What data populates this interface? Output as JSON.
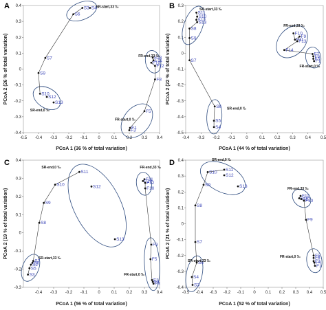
{
  "chart_data": [
    {
      "type": "scatter",
      "panel": "A",
      "xlabel": "PCoA 1 (36 % of total variation)",
      "ylabel": "PCoA 2 (26 % of total variation)",
      "xlim": [
        -0.5,
        0.4
      ],
      "ylim": [
        -0.4,
        0.4
      ],
      "xticks": [
        "-0.5",
        "-0.4",
        "-0.3",
        "-0.2",
        "-0.1",
        "0",
        "0.1",
        "0.2",
        "0.3",
        "0.4"
      ],
      "yticks": [
        "0.4",
        "0.3",
        "0.2",
        "0.1",
        "0",
        "-0.1",
        "-0.2",
        "-0.3",
        "-0.4"
      ],
      "points": [
        {
          "label": "S3",
          "x": -0.11,
          "y": 0.385
        },
        {
          "label": "S4",
          "x": -0.06,
          "y": 0.385
        },
        {
          "label": "S6",
          "x": -0.17,
          "y": 0.345
        },
        {
          "label": "S7",
          "x": -0.355,
          "y": 0.07
        },
        {
          "label": "S9",
          "x": -0.4,
          "y": -0.025
        },
        {
          "label": "S10",
          "x": -0.39,
          "y": -0.155
        },
        {
          "label": "S12",
          "x": -0.345,
          "y": -0.175
        },
        {
          "label": "S13",
          "x": -0.3,
          "y": -0.21
        },
        {
          "label": "F13",
          "x": 0.355,
          "y": 0.072
        },
        {
          "label": "F11",
          "x": 0.36,
          "y": 0.055
        },
        {
          "label": "F10",
          "x": 0.345,
          "y": 0.04
        },
        {
          "label": "F12",
          "x": 0.37,
          "y": 0.02
        },
        {
          "label": "F8",
          "x": 0.37,
          "y": -0.065
        },
        {
          "label": "F5",
          "x": 0.3,
          "y": -0.265
        },
        {
          "label": "F3",
          "x": 0.2,
          "y": -0.385
        },
        {
          "label": "F1",
          "x": 0.205,
          "y": -0.37
        }
      ],
      "annotations": [
        {
          "text": "SR-start,33 ‰",
          "x": -0.02,
          "y": 0.385
        },
        {
          "text": "FR-end,33 ‰",
          "x": 0.26,
          "y": 0.075
        },
        {
          "text": "SR-end,0 ‰",
          "x": -0.455,
          "y": -0.265
        },
        {
          "text": "FR-start,0 ‰",
          "x": 0.105,
          "y": -0.325
        }
      ]
    },
    {
      "type": "scatter",
      "panel": "B",
      "xlabel": "PCoA 1 (44 % of total variation)",
      "ylabel": "PCoA 2 (22 % of total variation)",
      "xlim": [
        -0.4,
        0.5
      ],
      "ylim": [
        -0.5,
        0.3
      ],
      "xticks": [
        "-0.4",
        "-0.3",
        "-0.2",
        "-0.1",
        "0",
        "0.1",
        "0.2",
        "0.3",
        "0.4",
        "0.5"
      ],
      "yticks": [
        "0.3",
        "0.2",
        "0.1",
        "0",
        "-0.1",
        "-0.2",
        "-0.3",
        "-0.4",
        "-0.5"
      ],
      "points": [
        {
          "label": "S11",
          "x": -0.33,
          "y": 0.255
        },
        {
          "label": "S10",
          "x": -0.325,
          "y": 0.23
        },
        {
          "label": "S12",
          "x": -0.33,
          "y": 0.21
        },
        {
          "label": "S13",
          "x": -0.325,
          "y": 0.195
        },
        {
          "label": "S8",
          "x": -0.375,
          "y": 0.155
        },
        {
          "label": "S9",
          "x": -0.375,
          "y": 0.095
        },
        {
          "label": "S7",
          "x": -0.375,
          "y": -0.045
        },
        {
          "label": "S6",
          "x": -0.21,
          "y": -0.335
        },
        {
          "label": "S5",
          "x": -0.215,
          "y": -0.425
        },
        {
          "label": "S4",
          "x": -0.215,
          "y": -0.465
        },
        {
          "label": "F10",
          "x": 0.305,
          "y": 0.125
        },
        {
          "label": "F9",
          "x": 0.345,
          "y": 0.105
        },
        {
          "label": "F11",
          "x": 0.315,
          "y": 0.085
        },
        {
          "label": "F13",
          "x": 0.33,
          "y": 0.075
        },
        {
          "label": "F14",
          "x": 0.245,
          "y": 0.02
        },
        {
          "label": "F7",
          "x": 0.43,
          "y": -0.005
        },
        {
          "label": "F6",
          "x": 0.435,
          "y": -0.02
        },
        {
          "label": "F3",
          "x": 0.435,
          "y": -0.035
        },
        {
          "label": "F1",
          "x": 0.44,
          "y": -0.05
        }
      ],
      "annotations": [
        {
          "text": "SR-start,33 ‰",
          "x": -0.31,
          "y": 0.27
        },
        {
          "text": "FR-end,33 ‰",
          "x": 0.24,
          "y": 0.165
        },
        {
          "text": "FR-start,0 ‰",
          "x": 0.345,
          "y": -0.09
        },
        {
          "text": "SR-end,0 ‰",
          "x": -0.13,
          "y": -0.355
        }
      ]
    },
    {
      "type": "scatter",
      "panel": "C",
      "xlabel": "PCoA 1 (56 % of total variation)",
      "ylabel": "PCoA 2 (19 % of total variation)",
      "xlim": [
        -0.5,
        0.4
      ],
      "ylim": [
        -0.3,
        0.4
      ],
      "xticks": [
        "-0.4",
        "-0.3",
        "-0.2",
        "-0.1",
        "0",
        "0.1",
        "0.2",
        "0.3",
        "0.4"
      ],
      "yticks": [
        "0.4",
        "0.3",
        "0.2",
        "0.1",
        "0",
        "-0.1",
        "-0.2",
        "-0.3"
      ],
      "points": [
        {
          "label": "S11",
          "x": -0.13,
          "y": 0.335
        },
        {
          "label": "S10",
          "x": -0.29,
          "y": 0.265
        },
        {
          "label": "S12",
          "x": -0.05,
          "y": 0.255
        },
        {
          "label": "S9",
          "x": -0.365,
          "y": 0.165
        },
        {
          "label": "S8",
          "x": -0.395,
          "y": 0.055
        },
        {
          "label": "S13",
          "x": 0.105,
          "y": -0.035
        },
        {
          "label": "S7",
          "x": -0.435,
          "y": -0.155
        },
        {
          "label": "S6",
          "x": -0.44,
          "y": -0.165
        },
        {
          "label": "S2",
          "x": -0.45,
          "y": -0.175
        },
        {
          "label": "S5",
          "x": -0.46,
          "y": -0.195
        },
        {
          "label": "S3",
          "x": -0.47,
          "y": -0.23
        },
        {
          "label": "F11",
          "x": 0.3,
          "y": 0.295
        },
        {
          "label": "F13",
          "x": 0.29,
          "y": 0.285
        },
        {
          "label": "F12",
          "x": 0.305,
          "y": 0.275
        },
        {
          "label": "F10",
          "x": 0.305,
          "y": 0.245
        },
        {
          "label": "F9",
          "x": 0.345,
          "y": -0.065
        },
        {
          "label": "F5",
          "x": 0.34,
          "y": -0.145
        },
        {
          "label": "F1",
          "x": 0.35,
          "y": -0.26
        },
        {
          "label": "F2",
          "x": 0.355,
          "y": -0.27
        },
        {
          "label": "F3",
          "x": 0.36,
          "y": -0.28
        }
      ],
      "annotations": [
        {
          "text": "SR-end,0 ‰",
          "x": -0.38,
          "y": 0.355
        },
        {
          "text": "FR-end,33 ‰",
          "x": 0.27,
          "y": 0.355
        },
        {
          "text": "SR-start,33 ‰",
          "x": -0.4,
          "y": -0.145
        },
        {
          "text": "FR-start,0 ‰",
          "x": 0.165,
          "y": -0.235
        }
      ]
    },
    {
      "type": "scatter",
      "panel": "D",
      "xlabel": "PCoA 1 (52 % of total variation)",
      "ylabel": "PCoA 2 (21 % of total variation)",
      "xlim": [
        -0.5,
        0.5
      ],
      "ylim": [
        -0.4,
        0.4
      ],
      "xticks": [
        "-0.5",
        "-0.4",
        "-0.3",
        "-0.2",
        "-0.1",
        "0",
        "0.1",
        "0.2",
        "0.3",
        "0.4",
        "0.5"
      ],
      "yticks": [
        "0.4",
        "0.3",
        "0.2",
        "0.1",
        "0",
        "-0.1",
        "-0.2",
        "-0.3",
        "-0.4"
      ],
      "points": [
        {
          "label": "S11",
          "x": -0.22,
          "y": 0.34
        },
        {
          "label": "S10",
          "x": -0.34,
          "y": 0.325
        },
        {
          "label": "S12",
          "x": -0.22,
          "y": 0.305
        },
        {
          "label": "S13",
          "x": -0.12,
          "y": 0.235
        },
        {
          "label": "S9",
          "x": -0.37,
          "y": 0.245
        },
        {
          "label": "S8",
          "x": -0.43,
          "y": 0.115
        },
        {
          "label": "S7",
          "x": -0.43,
          "y": -0.115
        },
        {
          "label": "S6",
          "x": -0.42,
          "y": -0.245
        },
        {
          "label": "S4",
          "x": -0.455,
          "y": -0.335
        },
        {
          "label": "S3",
          "x": -0.45,
          "y": -0.385
        },
        {
          "label": "F11",
          "x": 0.335,
          "y": 0.175
        },
        {
          "label": "F14",
          "x": 0.325,
          "y": 0.16
        },
        {
          "label": "F12",
          "x": 0.34,
          "y": 0.155
        },
        {
          "label": "F10",
          "x": 0.36,
          "y": 0.145
        },
        {
          "label": "F9",
          "x": 0.375,
          "y": 0.025
        },
        {
          "label": "F5",
          "x": 0.43,
          "y": -0.2
        },
        {
          "label": "F6",
          "x": 0.43,
          "y": -0.215
        },
        {
          "label": "F2",
          "x": 0.43,
          "y": -0.235
        },
        {
          "label": "F4",
          "x": 0.435,
          "y": -0.245
        },
        {
          "label": "F1",
          "x": 0.44,
          "y": -0.265
        }
      ],
      "annotations": [
        {
          "text": "SR-end,0 ‰",
          "x": -0.31,
          "y": 0.395
        },
        {
          "text": "FR-end,33 ‰",
          "x": 0.24,
          "y": 0.215
        },
        {
          "text": "FR-start,0 ‰",
          "x": 0.185,
          "y": -0.215
        },
        {
          "text": "SR-start,33 ‰",
          "x": -0.485,
          "y": -0.24
        }
      ]
    }
  ]
}
